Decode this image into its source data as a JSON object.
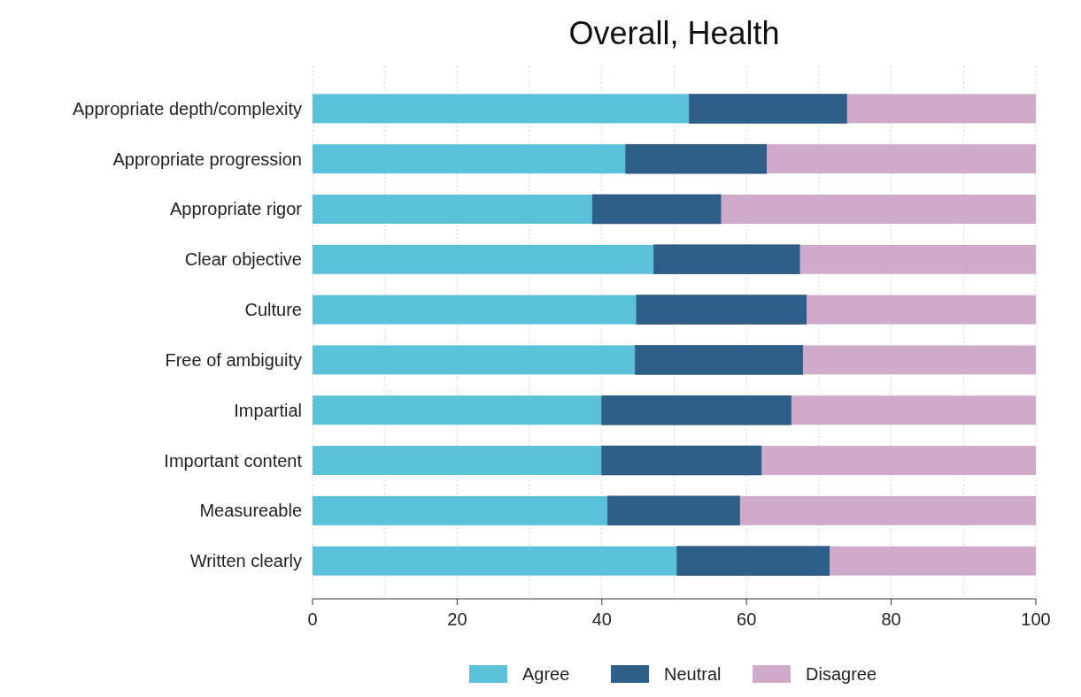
{
  "chart_data": {
    "type": "bar",
    "title": "Overall, Health",
    "orientation": "horizontal",
    "stacked": true,
    "categories": [
      "Appropriate depth/complexity",
      "Appropriate progression",
      "Appropriate rigor",
      "Clear objective",
      "Culture",
      "Free of ambiguity",
      "Impartial",
      "Important content",
      "Measureable",
      "Written clearly"
    ],
    "series": [
      {
        "name": "Agree",
        "color": "#5bc0da",
        "values": [
          52.1,
          43.3,
          38.7,
          47.2,
          44.8,
          44.6,
          40.0,
          40.0,
          40.8,
          50.4
        ]
      },
      {
        "name": "Neutral",
        "color": "#2e5f8a",
        "values": [
          21.8,
          19.5,
          17.8,
          20.2,
          23.5,
          23.2,
          26.2,
          22.1,
          18.3,
          21.1
        ]
      },
      {
        "name": "Disagree",
        "color": "#d0abc9",
        "values": [
          26.1,
          37.2,
          43.5,
          32.6,
          31.7,
          32.2,
          33.8,
          37.9,
          40.9,
          28.5
        ]
      }
    ],
    "xlim": [
      0,
      100
    ],
    "xticks": [
      0,
      {
        "value": 10,
        "label": null
      },
      20,
      {
        "value": 30,
        "label": null
      },
      40,
      {
        "value": 50,
        "label": null
      },
      60,
      {
        "value": 70,
        "label": null
      },
      80,
      {
        "value": 90,
        "label": null
      },
      100
    ],
    "grid": "x",
    "legend": "bottom"
  }
}
